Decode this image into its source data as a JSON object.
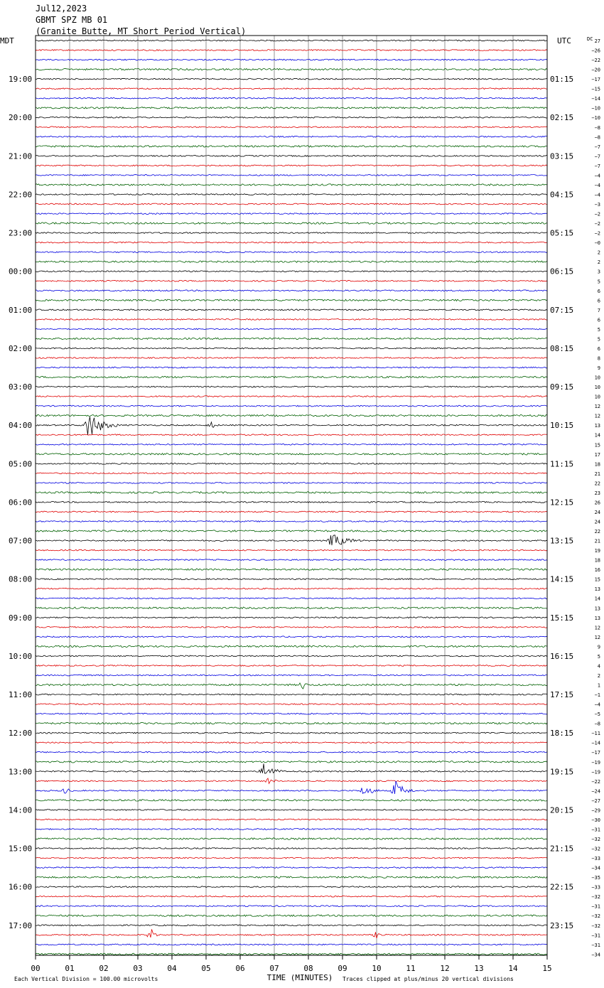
{
  "header": {
    "date": "Jul12,2023",
    "station": "GBMT SPZ MB 01",
    "location": "(Granite Butte, MT Short Period Vertical)"
  },
  "chart_data": {
    "type": "line",
    "left_timezone": "MDT",
    "right_timezone": "UTC",
    "dc_label": "DC",
    "xlabel": "TIME (MINUTES)",
    "x_ticks": [
      "00",
      "01",
      "02",
      "03",
      "04",
      "05",
      "06",
      "07",
      "08",
      "09",
      "10",
      "11",
      "12",
      "13",
      "14",
      "15"
    ],
    "xlim": [
      0,
      15
    ],
    "left_hour_labels": [
      "19:00",
      "20:00",
      "21:00",
      "22:00",
      "23:00",
      "00:00",
      "01:00",
      "02:00",
      "03:00",
      "04:00",
      "05:00",
      "06:00",
      "07:00",
      "08:00",
      "09:00",
      "10:00",
      "11:00",
      "12:00",
      "13:00",
      "14:00",
      "15:00",
      "16:00",
      "17:00"
    ],
    "right_hour_labels": [
      "01:15",
      "02:15",
      "03:15",
      "04:15",
      "05:15",
      "06:15",
      "07:15",
      "08:15",
      "09:15",
      "10:15",
      "11:15",
      "12:15",
      "13:15",
      "14:15",
      "15:15",
      "16:15",
      "17:15",
      "18:15",
      "19:15",
      "20:15",
      "21:15",
      "22:15",
      "23:15"
    ],
    "trace_colors": [
      "#000000",
      "#e00000",
      "#0000e0",
      "#006000"
    ],
    "dc_offsets": [
      27,
      -26,
      -22,
      -20,
      -17,
      -15,
      -14,
      -10,
      -10,
      -8,
      -8,
      -7,
      -7,
      -7,
      -4,
      -4,
      -4,
      -3,
      -2,
      -2,
      -2,
      0,
      2,
      2,
      3,
      5,
      6,
      6,
      7,
      6,
      5,
      5,
      6,
      8,
      9,
      10,
      10,
      10,
      12,
      12,
      13,
      14,
      15,
      17,
      18,
      21,
      22,
      23,
      26,
      24,
      24,
      22,
      21,
      19,
      18,
      16,
      15,
      13,
      14,
      13,
      13,
      12,
      12,
      9,
      5,
      4,
      2,
      1,
      -1,
      -4,
      -5,
      -8,
      -11,
      -14,
      -17,
      -19,
      -19,
      -22,
      -24,
      -27,
      -29,
      -30,
      -31,
      -32,
      -32,
      -33,
      -34,
      -35,
      -33,
      -32,
      -31,
      -32,
      -32,
      -31,
      -31,
      -34
    ],
    "events": [
      {
        "row": 40,
        "minute": 1.55,
        "amplitude": 20,
        "duration": 0.9
      },
      {
        "row": 40,
        "minute": 5.15,
        "amplitude": 5,
        "duration": 0.25
      },
      {
        "row": 52,
        "minute": 8.7,
        "amplitude": 11,
        "duration": 0.9
      },
      {
        "row": 67,
        "minute": 7.85,
        "amplitude": 6,
        "duration": 0.15
      },
      {
        "row": 76,
        "minute": 6.7,
        "amplitude": 13,
        "duration": 0.6
      },
      {
        "row": 77,
        "minute": 6.85,
        "amplitude": 5,
        "duration": 0.3
      },
      {
        "row": 78,
        "minute": 9.65,
        "amplitude": 9,
        "duration": 0.5
      },
      {
        "row": 78,
        "minute": 10.55,
        "amplitude": 14,
        "duration": 0.6
      },
      {
        "row": 78,
        "minute": 0.9,
        "amplitude": 5,
        "duration": 0.2
      },
      {
        "row": 93,
        "minute": 3.4,
        "amplitude": 8,
        "duration": 0.25
      },
      {
        "row": 93,
        "minute": 10.0,
        "amplitude": 4,
        "duration": 0.3
      }
    ],
    "footer_left": "Each Vertical Division =  100.00 microvolts",
    "footer_right": "Traces clipped at plus/minus 20 vertical divisions"
  }
}
